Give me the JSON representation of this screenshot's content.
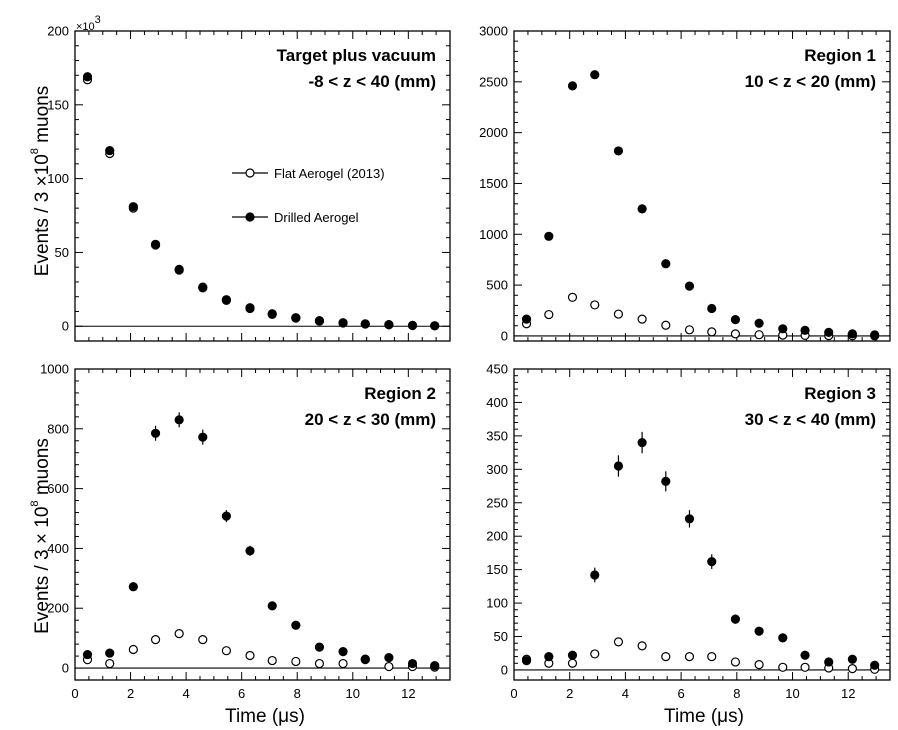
{
  "figure": {
    "xlabel_left": "Time (μs)",
    "xlabel_right": "Time (μs)",
    "ylabel_top": "Events / 3 ×10",
    "ylabel_bottom": "Events / 3 × 10",
    "ylabel_exponent": "8",
    "ylabel_suffix": "muons",
    "multiplier_base": "×10",
    "multiplier_exp": "3"
  },
  "legend": {
    "flat": "Flat Aerogel (2013)",
    "drilled": "Drilled Aerogel"
  },
  "chart_data": [
    {
      "type": "scatter",
      "title_line1": "Target plus vacuum",
      "title_line2": "-8 < z < 40 (mm)",
      "xlim": [
        0,
        13.5
      ],
      "ylim": [
        -10,
        200
      ],
      "ymultiplier": "×10^3",
      "yticks": [
        0,
        50,
        100,
        150,
        200
      ],
      "xticks": [
        0,
        2,
        4,
        6,
        8,
        10,
        12
      ],
      "x": [
        0.45,
        1.25,
        2.1,
        2.9,
        3.75,
        4.6,
        5.45,
        6.3,
        7.1,
        7.95,
        8.8,
        9.65,
        10.45,
        11.3,
        12.15,
        12.95
      ],
      "series": [
        {
          "name": "Flat Aerogel (2013)",
          "marker": "open",
          "values": [
            167,
            117,
            80,
            55,
            38,
            26,
            17.5,
            12,
            8,
            5.5,
            3.5,
            2.2,
            1.5,
            1,
            0.5,
            0.3
          ]
        },
        {
          "name": "Drilled Aerogel",
          "marker": "filled",
          "values": [
            169,
            119,
            81,
            55.5,
            38.5,
            26.5,
            18,
            12.5,
            8.5,
            5.8,
            3.8,
            2.4,
            1.6,
            1.1,
            0.6,
            0.3
          ]
        }
      ]
    },
    {
      "type": "scatter",
      "title_line1": "Region 1",
      "title_line2": "10 < z < 20 (mm)",
      "xlim": [
        0,
        13.5
      ],
      "ylim": [
        -50,
        3000
      ],
      "yticks": [
        0,
        500,
        1000,
        1500,
        2000,
        2500,
        3000
      ],
      "xticks": [
        0,
        2,
        4,
        6,
        8,
        10,
        12
      ],
      "x": [
        0.45,
        1.25,
        2.1,
        2.9,
        3.75,
        4.6,
        5.45,
        6.3,
        7.1,
        7.95,
        8.8,
        9.65,
        10.45,
        11.3,
        12.15,
        12.95
      ],
      "series": [
        {
          "name": "Flat Aerogel (2013)",
          "marker": "open",
          "values": [
            120,
            210,
            380,
            305,
            215,
            165,
            105,
            60,
            40,
            20,
            12,
            8,
            5,
            3,
            2,
            1
          ]
        },
        {
          "name": "Drilled Aerogel",
          "marker": "filled",
          "values": [
            165,
            980,
            2460,
            2570,
            1820,
            1250,
            710,
            490,
            270,
            160,
            125,
            70,
            55,
            35,
            20,
            10
          ],
          "errors": [
            0,
            0,
            30,
            40,
            0,
            0,
            0,
            0,
            0,
            0,
            0,
            0,
            0,
            0,
            0,
            0
          ]
        }
      ]
    },
    {
      "type": "scatter",
      "title_line1": "Region 2",
      "title_line2": "20 < z < 30 (mm)",
      "xlim": [
        0,
        13.5
      ],
      "ylim": [
        -40,
        1000
      ],
      "yticks": [
        0,
        200,
        400,
        600,
        800,
        1000
      ],
      "xticks": [
        0,
        2,
        4,
        6,
        8,
        10,
        12
      ],
      "x": [
        0.45,
        1.25,
        2.1,
        2.9,
        3.75,
        4.6,
        5.45,
        6.3,
        7.1,
        7.95,
        8.8,
        9.65,
        10.45,
        11.3,
        12.15,
        12.95
      ],
      "series": [
        {
          "name": "Flat Aerogel (2013)",
          "marker": "open",
          "values": [
            28,
            15,
            62,
            95,
            115,
            95,
            58,
            42,
            25,
            22,
            15,
            15,
            28,
            5,
            5,
            3
          ]
        },
        {
          "name": "Drilled Aerogel",
          "marker": "filled",
          "values": [
            45,
            50,
            272,
            785,
            830,
            772,
            508,
            392,
            208,
            143,
            70,
            55,
            30,
            35,
            15,
            8
          ],
          "errors": [
            0,
            0,
            15,
            25,
            25,
            25,
            20,
            17,
            0,
            0,
            0,
            0,
            0,
            0,
            0,
            0
          ]
        }
      ]
    },
    {
      "type": "scatter",
      "title_line1": "Region 3",
      "title_line2": "30 < z < 40 (mm)",
      "xlim": [
        0,
        13.5
      ],
      "ylim": [
        -15,
        450
      ],
      "yticks": [
        0,
        50,
        100,
        150,
        200,
        250,
        300,
        350,
        400,
        450
      ],
      "xticks": [
        0,
        2,
        4,
        6,
        8,
        10,
        12
      ],
      "x": [
        0.45,
        1.25,
        2.1,
        2.9,
        3.75,
        4.6,
        5.45,
        6.3,
        7.1,
        7.95,
        8.8,
        9.65,
        10.45,
        11.3,
        12.15,
        12.95
      ],
      "series": [
        {
          "name": "Flat Aerogel (2013)",
          "marker": "open",
          "values": [
            16,
            10,
            10,
            24,
            42,
            36,
            20,
            20,
            20,
            12,
            8,
            4,
            4,
            3,
            2,
            1
          ]
        },
        {
          "name": "Drilled Aerogel",
          "marker": "filled",
          "values": [
            14,
            20,
            22,
            142,
            305,
            340,
            282,
            226,
            162,
            76,
            58,
            48,
            22,
            12,
            16,
            7
          ],
          "errors": [
            0,
            0,
            0,
            11,
            16,
            16,
            15,
            13,
            11,
            7,
            6,
            0,
            0,
            0,
            0,
            0
          ]
        }
      ]
    }
  ]
}
